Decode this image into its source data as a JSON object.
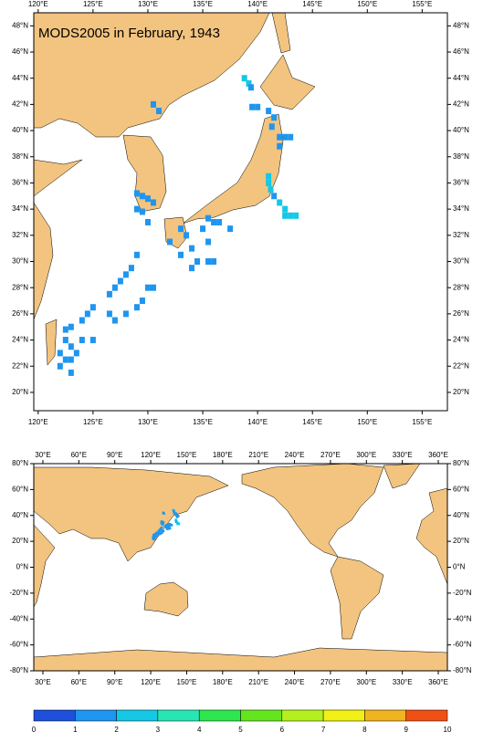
{
  "title": "MODS2005 in February, 1943",
  "maps": [
    {
      "xlim": [
        119.6,
        157.3
      ],
      "ylim": [
        18.6,
        49.0
      ],
      "xticks": [
        {
          "value": 120,
          "label": "120°E"
        },
        {
          "value": 125,
          "label": "125°E"
        },
        {
          "value": 130,
          "label": "130°E"
        },
        {
          "value": 135,
          "label": "135°E"
        },
        {
          "value": 140,
          "label": "140°E"
        },
        {
          "value": 145,
          "label": "145°E"
        },
        {
          "value": 150,
          "label": "150°E"
        },
        {
          "value": 155,
          "label": "155°E"
        }
      ],
      "yticks": [
        {
          "value": 20,
          "label": "20°N"
        },
        {
          "value": 22,
          "label": "22°N"
        },
        {
          "value": 24,
          "label": "24°N"
        },
        {
          "value": 26,
          "label": "26°N"
        },
        {
          "value": 28,
          "label": "28°N"
        },
        {
          "value": 30,
          "label": "30°N"
        },
        {
          "value": 32,
          "label": "32°N"
        },
        {
          "value": 34,
          "label": "34°N"
        },
        {
          "value": 36,
          "label": "36°N"
        },
        {
          "value": 38,
          "label": "38°N"
        },
        {
          "value": 40,
          "label": "40°N"
        },
        {
          "value": 42,
          "label": "42°N"
        },
        {
          "value": 44,
          "label": "44°N"
        },
        {
          "value": 46,
          "label": "46°N"
        },
        {
          "value": 48,
          "label": "48°N"
        }
      ]
    },
    {
      "xlim": [
        22.4,
        367.6
      ],
      "ylim": [
        -80,
        80
      ],
      "xticks": [
        {
          "value": 30,
          "label": "30°E"
        },
        {
          "value": 60,
          "label": "60°E"
        },
        {
          "value": 90,
          "label": "90°E"
        },
        {
          "value": 120,
          "label": "120°E"
        },
        {
          "value": 150,
          "label": "150°E"
        },
        {
          "value": 180,
          "label": "180°E"
        },
        {
          "value": 210,
          "label": "210°E"
        },
        {
          "value": 240,
          "label": "240°E"
        },
        {
          "value": 270,
          "label": "270°E"
        },
        {
          "value": 300,
          "label": "300°E"
        },
        {
          "value": 330,
          "label": "330°E"
        },
        {
          "value": 360,
          "label": "360°E"
        }
      ],
      "yticks": [
        {
          "value": -80,
          "label": "-80°N"
        },
        {
          "value": -60,
          "label": "-60°N"
        },
        {
          "value": -40,
          "label": "-40°N"
        },
        {
          "value": -20,
          "label": "-20°N"
        },
        {
          "value": 0,
          "label": "0°N"
        },
        {
          "value": 20,
          "label": "20°N"
        },
        {
          "value": 40,
          "label": "40°N"
        },
        {
          "value": 60,
          "label": "60°N"
        },
        {
          "value": 80,
          "label": "80°N"
        }
      ]
    }
  ],
  "obs": {
    "lon": [
      138.8,
      139.2,
      139.4,
      139.5,
      140,
      141,
      141.5,
      141.3,
      142,
      142.5,
      143,
      142,
      141,
      141,
      141.2,
      141.5,
      142,
      142.5,
      143,
      142.5,
      143.5,
      130.5,
      131,
      129,
      129.5,
      130,
      130.5,
      129,
      129.5,
      130,
      133,
      133.5,
      134,
      134.5,
      133,
      135,
      135.5,
      136,
      136.5,
      135.5,
      136,
      132,
      134,
      135.5,
      137.5,
      129,
      128.5,
      128,
      127.5,
      127,
      126.5,
      130,
      130.5,
      129.5,
      129,
      128,
      127,
      126.5,
      125,
      124.5,
      124,
      123,
      122.5,
      122.5,
      123,
      122,
      122.5,
      123.5,
      122,
      123,
      124,
      125,
      123
    ],
    "lat": [
      44,
      43.6,
      43.3,
      41.8,
      41.8,
      41.5,
      41,
      40.3,
      39.5,
      39.5,
      39.5,
      38.8,
      36.5,
      36,
      35.5,
      35,
      34.5,
      34,
      33.5,
      33.5,
      33.5,
      42,
      41.5,
      35.2,
      35,
      34.8,
      34.5,
      34,
      33.8,
      33,
      32.5,
      32,
      31,
      30,
      30.5,
      32.5,
      31.5,
      33,
      33,
      30,
      30,
      31.5,
      29.5,
      33.3,
      32.5,
      30.5,
      29.5,
      29,
      28.5,
      28,
      27.5,
      28,
      28,
      27,
      26.5,
      26,
      25.5,
      26,
      26.5,
      26,
      25.5,
      25,
      24.8,
      24,
      23.5,
      23,
      22.5,
      23,
      22,
      21.5,
      24,
      24,
      22.5
    ],
    "values": [
      2,
      2,
      1,
      1,
      1,
      1,
      1,
      1,
      1,
      1,
      1,
      1,
      2,
      2,
      2,
      1,
      2,
      2,
      2,
      2,
      2,
      1,
      1,
      1,
      1,
      1,
      1,
      1,
      1,
      1,
      1,
      1,
      1,
      1,
      1,
      1,
      1,
      1,
      1,
      1,
      1,
      1,
      1,
      1,
      1,
      1,
      1,
      1,
      1,
      1,
      1,
      1,
      1,
      1,
      1,
      1,
      1,
      1,
      1,
      1,
      1,
      1,
      1,
      1,
      1,
      1,
      1,
      1,
      1,
      1,
      1,
      1,
      1
    ]
  },
  "colorbar": {
    "ticks": [
      0,
      1,
      2,
      3,
      4,
      5,
      6,
      7,
      8,
      9,
      10
    ],
    "colors": [
      "#1e50dc",
      "#1e96f0",
      "#14c8e6",
      "#28e6b4",
      "#2ee650",
      "#64e61e",
      "#b4f01e",
      "#f0f014",
      "#f0b41e",
      "#f05014"
    ]
  }
}
